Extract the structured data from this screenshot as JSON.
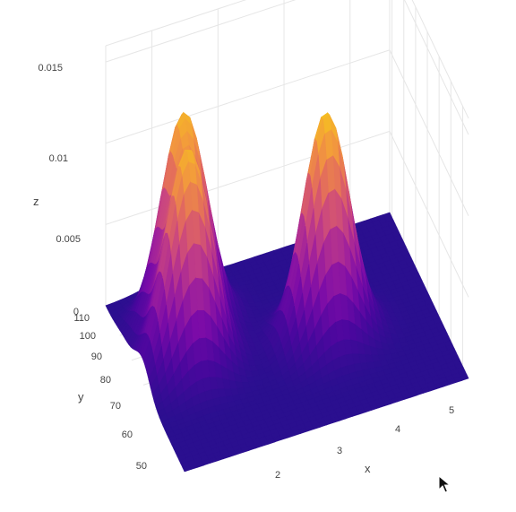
{
  "chart_data": {
    "type": "surface3d",
    "title": "",
    "colorscale": [
      "#2a0f8f",
      "#4b079e",
      "#7a0ba8",
      "#a3239a",
      "#c84382",
      "#e26a5e",
      "#f2963f",
      "#f6c21f"
    ],
    "grid": true,
    "axes": {
      "x": {
        "label": "x",
        "range": [
          1.3,
          5.6
        ],
        "ticks": [
          "2",
          "3",
          "4",
          "5"
        ]
      },
      "y": {
        "label": "y",
        "range": [
          45,
          112
        ],
        "ticks": [
          "50",
          "60",
          "70",
          "80",
          "90",
          "100",
          "110"
        ]
      },
      "z": {
        "label": "z",
        "range": [
          0,
          0.016
        ],
        "ticks": [
          "0",
          "0.005",
          "0.01",
          "0.015"
        ]
      }
    },
    "peaks": [
      {
        "x": 2.0,
        "y": 81,
        "z": 0.0126
      },
      {
        "x": 2.2,
        "y": 96,
        "z": 0.0126
      },
      {
        "x": 4.0,
        "y": 76,
        "z": 0.0138
      }
    ]
  },
  "cursor": {
    "icon": "mouse-pointer-icon"
  }
}
